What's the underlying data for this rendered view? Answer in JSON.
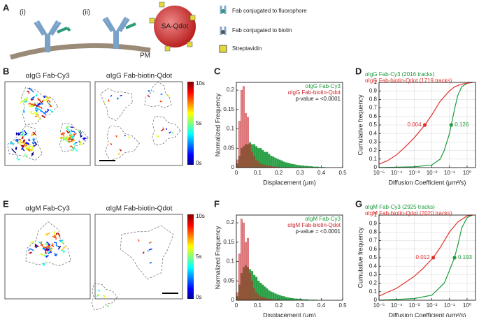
{
  "panel_labels": [
    "A",
    "B",
    "C",
    "D",
    "E",
    "F",
    "G"
  ],
  "schematic": {
    "labels": [
      "(i)",
      "(ii)"
    ],
    "qdot": "SA-Qdot",
    "membrane": "PM",
    "legend": [
      "Fab conjugated to fluorophore",
      "Fab conjugated to biotin",
      "Streptavidin"
    ]
  },
  "images": [
    {
      "titles": [
        "αIgG Fab-Cy3",
        "αIgG Fab-biotin-Qdot"
      ],
      "colorbar": [
        "10s",
        "5s",
        "0s"
      ]
    },
    {
      "titles": [
        "αIgM Fab-Cy3",
        "αIgM Fab-biotin-Qdot"
      ],
      "colorbar": [
        "10s",
        "5s",
        "0s"
      ]
    }
  ],
  "chart_data": [
    {
      "type": "histogram",
      "x_label": "Displacement (μm)",
      "y_label": "Normalized Frequency",
      "annotation": "p-value = <0.0001",
      "legend": "upper right",
      "bins": [
        0,
        0.01,
        0.02,
        0.03,
        0.04,
        0.05,
        0.06,
        0.07,
        0.08,
        0.09,
        0.1,
        0.11,
        0.12,
        0.13,
        0.14,
        0.15,
        0.16,
        0.17,
        0.18,
        0.19,
        0.2,
        0.21,
        0.22,
        0.23,
        0.24,
        0.25,
        0.26,
        0.27,
        0.28,
        0.29,
        0.3,
        0.31,
        0.32,
        0.33,
        0.34,
        0.35,
        0.36,
        0.37,
        0.38,
        0.39,
        0.4,
        0.41,
        0.42,
        0.43,
        0.44,
        0.45,
        0.46,
        0.47,
        0.48,
        0.49,
        0.5
      ],
      "xlim": [
        0,
        0.5
      ],
      "xticks": [
        0,
        0.1,
        0.2,
        0.3,
        0.4,
        0.5
      ],
      "ylim": [
        0,
        0.22
      ],
      "yticks": [
        0,
        0.05,
        0.1,
        0.15,
        0.2
      ],
      "series": [
        {
          "name": "αIgG Fab-Cy3",
          "color": "#1e9b3c",
          "values": [
            0.01,
            0.03,
            0.05,
            0.055,
            0.06,
            0.06,
            0.065,
            0.06,
            0.06,
            0.055,
            0.05,
            0.05,
            0.045,
            0.04,
            0.04,
            0.035,
            0.03,
            0.028,
            0.025,
            0.022,
            0.02,
            0.018,
            0.015,
            0.013,
            0.012,
            0.01,
            0.009,
            0.008,
            0.007,
            0.006,
            0.005,
            0.005,
            0.004,
            0.004,
            0.003,
            0.003,
            0.002,
            0.002,
            0.002,
            0.001,
            0.001,
            0.001,
            0,
            0,
            0,
            0,
            0,
            0,
            0,
            0
          ]
        },
        {
          "name": "αIgG Fab-biotin-Qdot",
          "color": "#c8282e",
          "values": [
            0.02,
            0.12,
            0.2,
            0.21,
            0.14,
            0.13,
            0.06,
            0.04,
            0.03,
            0.02,
            0.015,
            0.01,
            0.008,
            0.006,
            0.005,
            0.004,
            0.003,
            0.002,
            0.002,
            0.001,
            0,
            0,
            0,
            0,
            0,
            0,
            0,
            0,
            0,
            0,
            0,
            0,
            0,
            0,
            0,
            0,
            0,
            0,
            0,
            0,
            0,
            0,
            0,
            0,
            0,
            0,
            0,
            0,
            0,
            0
          ]
        }
      ]
    },
    {
      "type": "cdf",
      "x_label": "Diffusion Coefficient (μm²/s)",
      "y_label": "Cumulative frequency",
      "legend": "upper left",
      "log_x": true,
      "grid": true,
      "xlim": [
        1e-05,
        3
      ],
      "xticks": [
        {
          "value": 1e-05,
          "label": "10⁻⁵"
        },
        {
          "value": 0.0001,
          "label": "10⁻⁴"
        },
        {
          "value": 0.001,
          "label": "10⁻³"
        },
        {
          "value": 0.01,
          "label": "10⁻²"
        },
        {
          "value": 0.1,
          "label": "10⁻¹"
        },
        {
          "value": 1,
          "label": "10⁰"
        }
      ],
      "ylim": [
        0,
        1
      ],
      "yticks": [
        0,
        0.1,
        0.2,
        0.3,
        0.4,
        0.5,
        0.6,
        0.7,
        0.8,
        0.9,
        1
      ],
      "series": [
        {
          "name": "αIgG Fab-Cy3 (2016 tracks)",
          "color": "#1e9b3c",
          "median": 0.126,
          "x": [
            1e-05,
            0.001,
            0.01,
            0.03,
            0.05,
            0.1,
            0.126,
            0.2,
            0.3,
            0.5,
            1,
            2
          ],
          "values": [
            0,
            0.01,
            0.03,
            0.1,
            0.2,
            0.4,
            0.5,
            0.7,
            0.85,
            0.95,
            0.99,
            1
          ]
        },
        {
          "name": "αIgG Fab-biotin-Qdot (1719 tracks)",
          "color": "#e0302a",
          "median": 0.004,
          "x": [
            1e-05,
            3e-05,
            0.0001,
            0.0003,
            0.001,
            0.004,
            0.01,
            0.03,
            0.1,
            0.2,
            0.5,
            1,
            2
          ],
          "values": [
            0.04,
            0.08,
            0.15,
            0.24,
            0.35,
            0.5,
            0.62,
            0.78,
            0.9,
            0.95,
            0.98,
            0.99,
            1
          ]
        }
      ]
    },
    {
      "type": "histogram",
      "x_label": "Displacement (μm)",
      "y_label": "Normalized Frequency",
      "annotation": "p-value = <0.0001",
      "legend": "upper right",
      "bins": [
        0,
        0.01,
        0.02,
        0.03,
        0.04,
        0.05,
        0.06,
        0.07,
        0.08,
        0.09,
        0.1,
        0.11,
        0.12,
        0.13,
        0.14,
        0.15,
        0.16,
        0.17,
        0.18,
        0.19,
        0.2,
        0.21,
        0.22,
        0.23,
        0.24,
        0.25,
        0.26,
        0.27,
        0.28,
        0.29,
        0.3,
        0.31,
        0.32,
        0.33,
        0.34,
        0.35,
        0.36,
        0.37,
        0.38,
        0.39,
        0.4,
        0.41,
        0.42,
        0.43,
        0.44,
        0.45,
        0.46,
        0.47,
        0.48,
        0.49,
        0.5
      ],
      "xlim": [
        0,
        0.5
      ],
      "xticks": [
        0,
        0.1,
        0.2,
        0.3,
        0.4,
        0.5
      ],
      "ylim": [
        0,
        0.22
      ],
      "yticks": [
        0,
        0.05,
        0.1,
        0.15,
        0.2
      ],
      "series": [
        {
          "name": "αIgM Fab-Cy3",
          "color": "#1e9b3c",
          "values": [
            0.01,
            0.04,
            0.07,
            0.085,
            0.09,
            0.085,
            0.08,
            0.075,
            0.065,
            0.06,
            0.05,
            0.045,
            0.04,
            0.035,
            0.03,
            0.025,
            0.022,
            0.02,
            0.017,
            0.015,
            0.013,
            0.011,
            0.01,
            0.008,
            0.007,
            0.006,
            0.005,
            0.004,
            0.004,
            0.003,
            0.003,
            0.002,
            0.002,
            0.002,
            0.001,
            0.001,
            0.001,
            0.001,
            0,
            0,
            0,
            0,
            0,
            0,
            0,
            0,
            0,
            0,
            0,
            0
          ]
        },
        {
          "name": "αIgM Fab-biotin-Qdot",
          "color": "#c8282e",
          "values": [
            0.02,
            0.12,
            0.21,
            0.2,
            0.15,
            0.16,
            0.07,
            0.05,
            0.03,
            0.02,
            0.015,
            0.01,
            0.008,
            0.006,
            0.004,
            0.003,
            0.002,
            0.002,
            0.001,
            0.001,
            0,
            0,
            0,
            0,
            0,
            0,
            0,
            0,
            0,
            0,
            0,
            0,
            0,
            0,
            0,
            0,
            0,
            0,
            0,
            0,
            0,
            0,
            0,
            0,
            0,
            0,
            0,
            0,
            0,
            0
          ]
        }
      ]
    },
    {
      "type": "cdf",
      "x_label": "Diffusion Coefficient (μm²/s)",
      "y_label": "Cumulative frequency",
      "legend": "upper left",
      "log_x": true,
      "grid": true,
      "xlim": [
        1e-05,
        3
      ],
      "xticks": [
        {
          "value": 1e-05,
          "label": "10⁻⁵"
        },
        {
          "value": 0.0001,
          "label": "10⁻⁴"
        },
        {
          "value": 0.001,
          "label": "10⁻³"
        },
        {
          "value": 0.01,
          "label": "10⁻²"
        },
        {
          "value": 0.1,
          "label": "10⁻¹"
        },
        {
          "value": 1,
          "label": "10⁰"
        }
      ],
      "ylim": [
        0,
        1
      ],
      "yticks": [
        0,
        0.1,
        0.2,
        0.3,
        0.4,
        0.5,
        0.6,
        0.7,
        0.8,
        0.9,
        1
      ],
      "series": [
        {
          "name": "αIgM Fab-Cy3 (2925 tracks)",
          "color": "#1e9b3c",
          "median": 0.193,
          "x": [
            1e-05,
            0.001,
            0.01,
            0.05,
            0.1,
            0.193,
            0.3,
            0.5,
            1,
            2
          ],
          "values": [
            0,
            0.02,
            0.06,
            0.2,
            0.35,
            0.5,
            0.65,
            0.85,
            0.97,
            1
          ]
        },
        {
          "name": "αIgM Fab-biotin-Qdot (2020 tracks)",
          "color": "#e0302a",
          "median": 0.012,
          "x": [
            1e-05,
            0.0001,
            0.001,
            0.003,
            0.012,
            0.03,
            0.1,
            0.3,
            1,
            2
          ],
          "values": [
            0.05,
            0.14,
            0.28,
            0.37,
            0.5,
            0.62,
            0.8,
            0.92,
            0.99,
            1
          ]
        }
      ]
    }
  ]
}
